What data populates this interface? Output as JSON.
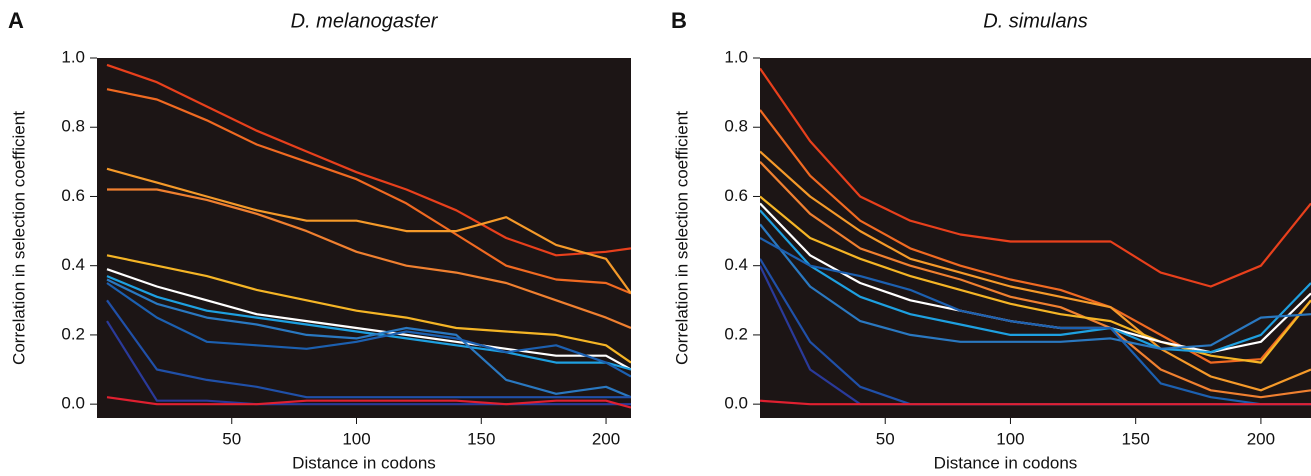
{
  "chart_data": [
    {
      "type": "line",
      "panel_label": "A",
      "title": "D. melanogaster",
      "xlabel": "Distance in codons",
      "ylabel": "Correlation in selection coefficient",
      "xlim": [
        -4,
        210
      ],
      "ylim": [
        -0.04,
        1.0
      ],
      "xticks": [
        50,
        100,
        150,
        200
      ],
      "yticks": [
        {
          "value": 0,
          "label": "0.0"
        },
        0.2,
        0.4,
        0.6,
        0.8,
        {
          "value": 1,
          "label": "1.0"
        }
      ],
      "x": [
        0,
        20,
        40,
        60,
        80,
        100,
        120,
        140,
        160,
        180,
        200,
        210
      ],
      "series": [
        {
          "color": "#e8401c",
          "values": [
            0.98,
            0.93,
            0.86,
            0.79,
            0.73,
            0.67,
            0.62,
            0.56,
            0.48,
            0.43,
            0.44,
            0.45
          ]
        },
        {
          "color": "#f06a22",
          "values": [
            0.91,
            0.88,
            0.82,
            0.75,
            0.7,
            0.65,
            0.58,
            0.49,
            0.4,
            0.36,
            0.35,
            0.32
          ]
        },
        {
          "color": "#f59a2a",
          "values": [
            0.68,
            0.64,
            0.6,
            0.56,
            0.53,
            0.53,
            0.5,
            0.5,
            0.54,
            0.46,
            0.42,
            0.32
          ]
        },
        {
          "color": "#f08030",
          "values": [
            0.62,
            0.62,
            0.59,
            0.55,
            0.5,
            0.44,
            0.4,
            0.38,
            0.35,
            0.3,
            0.25,
            0.22
          ]
        },
        {
          "color": "#f5b526",
          "values": [
            0.43,
            0.4,
            0.37,
            0.33,
            0.3,
            0.27,
            0.25,
            0.22,
            0.21,
            0.2,
            0.17,
            0.12
          ]
        },
        {
          "color": "#ffffff",
          "values": [
            0.39,
            0.34,
            0.3,
            0.26,
            0.24,
            0.22,
            0.2,
            0.18,
            0.16,
            0.14,
            0.14,
            0.1
          ]
        },
        {
          "color": "#1ea0e0",
          "values": [
            0.37,
            0.31,
            0.27,
            0.25,
            0.23,
            0.21,
            0.19,
            0.17,
            0.15,
            0.12,
            0.12,
            0.1
          ]
        },
        {
          "color": "#2a78c0",
          "values": [
            0.36,
            0.29,
            0.25,
            0.23,
            0.2,
            0.19,
            0.22,
            0.2,
            0.07,
            0.03,
            0.05,
            0.02
          ]
        },
        {
          "color": "#1c60b0",
          "values": [
            0.35,
            0.25,
            0.18,
            0.17,
            0.16,
            0.18,
            0.21,
            0.19,
            0.15,
            0.17,
            0.12,
            0.08
          ]
        },
        {
          "color": "#2050a8",
          "values": [
            0.3,
            0.1,
            0.07,
            0.05,
            0.02,
            0.02,
            0.02,
            0.02,
            0.02,
            0.02,
            0.02,
            0.02
          ]
        },
        {
          "color": "#2a3a9a",
          "values": [
            0.24,
            0.01,
            0.01,
            0,
            0,
            0,
            0,
            0,
            0,
            0,
            0,
            0
          ]
        },
        {
          "color": "#e02030",
          "values": [
            0.02,
            0,
            0,
            0,
            0.01,
            0.01,
            0.01,
            0.01,
            0,
            0.01,
            0.01,
            -0.01
          ]
        }
      ]
    },
    {
      "type": "line",
      "panel_label": "B",
      "title": "D. simulans",
      "xlabel": "Distance in codons",
      "ylabel": "Correlation in selection coefficient",
      "xlim": [
        0,
        220
      ],
      "ylim": [
        -0.04,
        1.0
      ],
      "xticks": [
        50,
        100,
        150,
        200
      ],
      "yticks": [
        {
          "value": 0,
          "label": "0.0"
        },
        0.2,
        0.4,
        0.6,
        0.8,
        {
          "value": 1,
          "label": "1.0"
        }
      ],
      "x": [
        0,
        20,
        40,
        60,
        80,
        100,
        120,
        140,
        160,
        180,
        200,
        220
      ],
      "series": [
        {
          "color": "#e8401c",
          "values": [
            0.97,
            0.76,
            0.6,
            0.53,
            0.49,
            0.47,
            0.47,
            0.47,
            0.38,
            0.34,
            0.4,
            0.58
          ]
        },
        {
          "color": "#f06a22",
          "values": [
            0.85,
            0.66,
            0.53,
            0.45,
            0.4,
            0.36,
            0.33,
            0.28,
            0.2,
            0.12,
            0.13,
            0.3
          ]
        },
        {
          "color": "#f59a2a",
          "values": [
            0.73,
            0.6,
            0.5,
            0.42,
            0.38,
            0.34,
            0.31,
            0.28,
            0.16,
            0.08,
            0.04,
            0.1
          ]
        },
        {
          "color": "#f08030",
          "values": [
            0.7,
            0.55,
            0.45,
            0.4,
            0.36,
            0.31,
            0.28,
            0.22,
            0.1,
            0.04,
            0.02,
            0.04
          ]
        },
        {
          "color": "#f5b526",
          "values": [
            0.6,
            0.48,
            0.42,
            0.37,
            0.33,
            0.29,
            0.26,
            0.24,
            0.18,
            0.14,
            0.12,
            0.3
          ]
        },
        {
          "color": "#ffffff",
          "values": [
            0.58,
            0.43,
            0.35,
            0.3,
            0.27,
            0.24,
            0.22,
            0.22,
            0.18,
            0.15,
            0.18,
            0.32
          ]
        },
        {
          "color": "#1ea0e0",
          "values": [
            0.56,
            0.4,
            0.31,
            0.26,
            0.23,
            0.2,
            0.2,
            0.22,
            0.16,
            0.15,
            0.2,
            0.35
          ]
        },
        {
          "color": "#2a78c0",
          "values": [
            0.52,
            0.34,
            0.24,
            0.2,
            0.18,
            0.18,
            0.18,
            0.19,
            0.16,
            0.17,
            0.25,
            0.26
          ]
        },
        {
          "color": "#1c60b0",
          "values": [
            0.48,
            0.4,
            0.37,
            0.33,
            0.27,
            0.24,
            0.22,
            0.22,
            0.06,
            0.02,
            0,
            0
          ]
        },
        {
          "color": "#2050a8",
          "values": [
            0.42,
            0.18,
            0.05,
            0,
            0,
            0,
            0,
            0,
            0,
            0,
            0,
            0
          ]
        },
        {
          "color": "#2a3a9a",
          "values": [
            0.4,
            0.1,
            0,
            0,
            0,
            0,
            0,
            0,
            0,
            0,
            0,
            0
          ]
        },
        {
          "color": "#e02030",
          "values": [
            0.01,
            0,
            0,
            0,
            0,
            0,
            0,
            0,
            0,
            0,
            0,
            0
          ]
        }
      ]
    }
  ]
}
